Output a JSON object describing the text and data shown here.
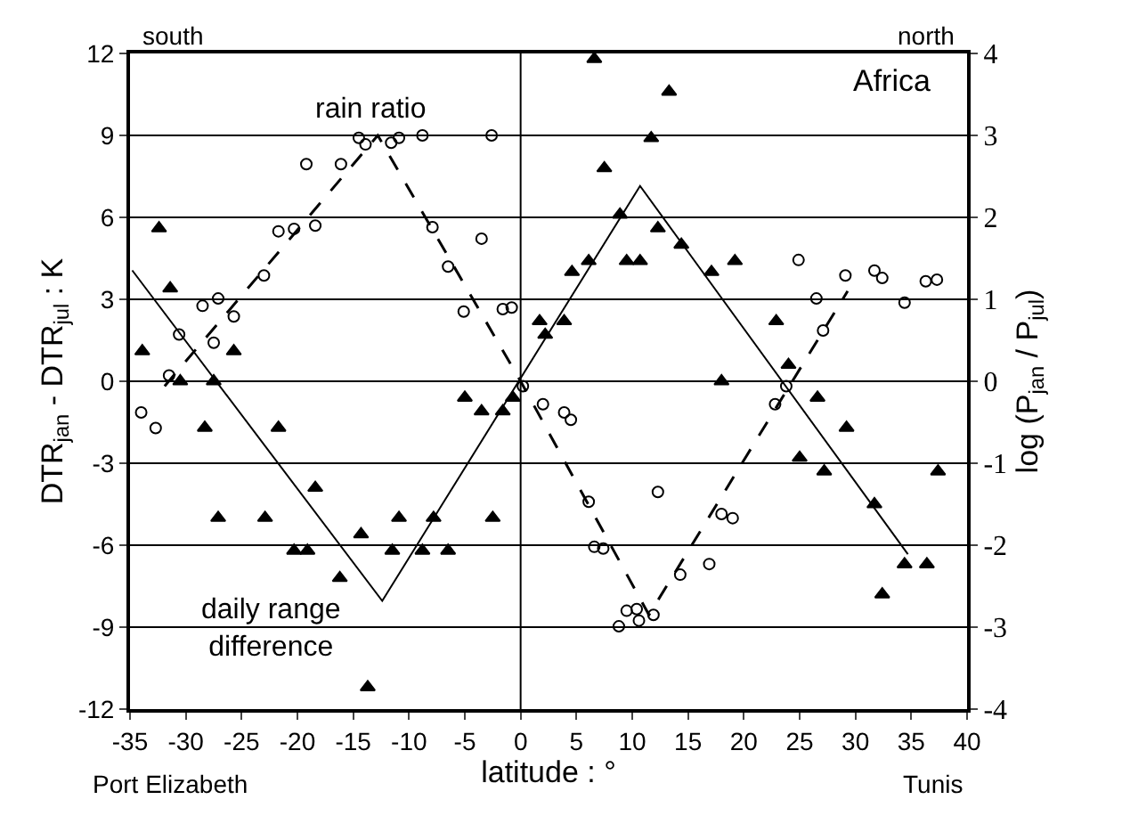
{
  "chart_data": {
    "type": "scatter",
    "xlabel": "latitude : °",
    "ylabel": "DTR$_{jan}$ - DTR$_{jul}$ : K",
    "y2label": "log (P$_{jan}$ / P$_{jul}$)",
    "annotations": [
      "south",
      "north",
      "Africa",
      "rain ratio",
      "daily range\ndifference",
      "Port Elizabeth",
      "Tunis"
    ],
    "xlim": [
      -35,
      40
    ],
    "xticks": [
      -35,
      -30,
      -25,
      -20,
      -15,
      -10,
      -5,
      0,
      5,
      10,
      15,
      20,
      25,
      30,
      35,
      40
    ],
    "ylim": [
      -12,
      12
    ],
    "yticks": [
      -12,
      -9,
      -6,
      -3,
      0,
      3,
      6,
      9,
      12
    ],
    "y2lim": [
      -4,
      4
    ],
    "y2ticks": [
      -4,
      -3,
      -2,
      -1,
      0,
      1,
      2,
      3,
      4
    ],
    "grid": "y",
    "ref_lines": [
      {
        "axis": "x",
        "value": 0,
        "color": "#000000"
      }
    ],
    "series": [
      {
        "marker": "triangle",
        "color": "#000000",
        "x": [
          -32.4,
          -31.4,
          -33.9,
          -30.5,
          -27.5,
          -25.7,
          -28.3,
          -21.7,
          -18.4,
          -27.1,
          -22.9,
          -20.3,
          -19.1,
          -16.2,
          -14.3,
          -13.7,
          -11.5,
          -10.9,
          -8.8,
          -7.8,
          -6.5,
          -2.5,
          -5.0,
          -3.5,
          -1.6,
          -0.7,
          6.6,
          13.3,
          11.7,
          7.5,
          8.9,
          12.3,
          14.4,
          9.5,
          10.7,
          6.1,
          4.6,
          19.2,
          17.1,
          1.7,
          3.9,
          2.2,
          22.9,
          24.0,
          18.0,
          26.6,
          29.2,
          25.0,
          27.2,
          37.4,
          31.7,
          34.4,
          36.4,
          32.4
        ],
        "values": [
          5.6,
          3.4,
          1.1,
          0.0,
          0.0,
          1.1,
          -1.7,
          -1.7,
          -3.9,
          -5.0,
          -5.0,
          -6.2,
          -6.2,
          -7.2,
          -5.6,
          -11.2,
          -6.2,
          -5.0,
          -6.2,
          -5.0,
          -6.2,
          -5.0,
          -0.6,
          -1.1,
          -1.1,
          -0.6,
          11.8,
          10.6,
          8.9,
          7.8,
          6.1,
          5.6,
          5.0,
          4.4,
          4.4,
          4.4,
          4.0,
          4.4,
          4.0,
          2.2,
          2.2,
          1.7,
          2.2,
          0.6,
          0.0,
          -0.6,
          -1.7,
          -2.8,
          -3.3,
          -3.3,
          -4.5,
          -6.7,
          -6.7,
          -7.8
        ]
      },
      {
        "marker": "circle",
        "color": "#000000",
        "axis": "y2",
        "x": [
          -19.2,
          -16.1,
          -14.5,
          -13.9,
          -11.6,
          -10.9,
          -8.8,
          -2.6,
          -21.7,
          -20.3,
          -18.4,
          -7.9,
          -3.5,
          -23.0,
          -6.5,
          -28.5,
          -27.1,
          -25.7,
          -5.1,
          -1.6,
          -0.8,
          -30.6,
          -27.5,
          -31.5,
          0.2,
          -34.0,
          -32.7,
          2.0,
          3.9,
          4.5,
          24.9,
          26.5,
          29.1,
          31.7,
          32.4,
          34.4,
          36.3,
          37.3,
          27.1,
          23.8,
          22.8,
          6.1,
          6.6,
          7.4,
          12.3,
          9.5,
          10.4,
          8.8,
          10.6,
          11.9,
          14.3,
          16.9,
          18.0,
          19.0
        ],
        "values": [
          2.65,
          2.65,
          2.97,
          2.89,
          2.91,
          2.97,
          3.0,
          3.0,
          1.83,
          1.86,
          1.9,
          1.88,
          1.74,
          1.29,
          1.4,
          0.92,
          1.01,
          0.79,
          0.85,
          0.88,
          0.9,
          0.57,
          0.47,
          0.07,
          -0.06,
          -0.38,
          -0.57,
          -0.28,
          -0.38,
          -0.47,
          1.48,
          1.01,
          1.29,
          1.35,
          1.26,
          0.96,
          1.22,
          1.24,
          0.62,
          -0.06,
          -0.28,
          -1.47,
          -2.02,
          -2.04,
          -1.35,
          -2.8,
          -2.78,
          -2.99,
          -2.92,
          -2.85,
          -2.36,
          -2.23,
          -1.62,
          -1.67
        ]
      },
      {
        "type": "line",
        "marker": "none",
        "line_style": "solid",
        "color": "#000000",
        "x": [
          -34.8,
          -12.4,
          10.7,
          34.7
        ],
        "values": [
          4.06,
          -8.04,
          7.15,
          -6.33
        ]
      },
      {
        "type": "line",
        "marker": "none",
        "line_style": "dashed",
        "color": "#000000",
        "axis": "y2",
        "x": [
          -31.9,
          -12.8,
          0.0,
          11.5,
          29.3
        ],
        "values": [
          -0.06,
          3.0,
          0.0,
          -2.85,
          1.1
        ]
      }
    ]
  }
}
